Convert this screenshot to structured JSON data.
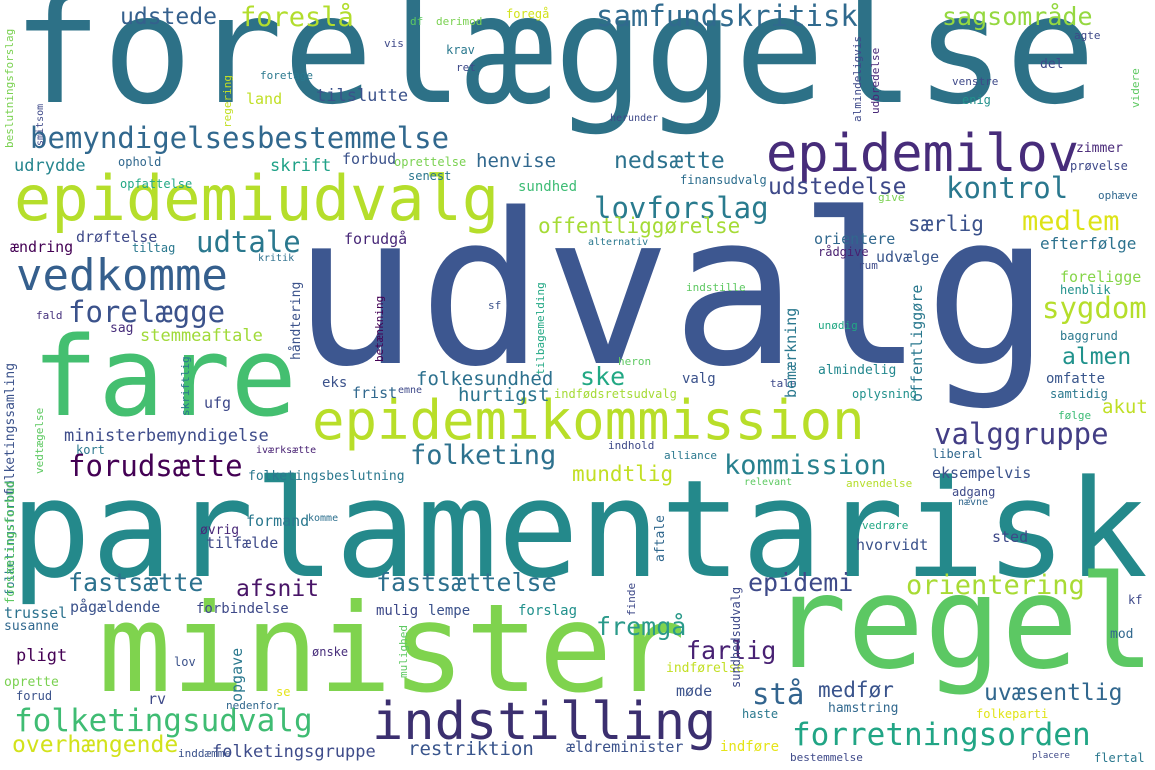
{
  "words": [
    {
      "text": "forelæggelse",
      "color": "#2d7187"
    },
    {
      "text": "udvalg",
      "color": "#3d5790"
    },
    {
      "text": "parlamentarisk",
      "color": "#24898b"
    },
    {
      "text": "minister",
      "color": "#7fd34e"
    },
    {
      "text": "regel",
      "color": "#5cc863"
    },
    {
      "text": "fare",
      "color": "#44bf70"
    },
    {
      "text": "epidemiudvalg",
      "color": "#b5de2b"
    },
    {
      "text": "epidemikommission",
      "color": "#b8de29"
    },
    {
      "text": "vedkomme",
      "color": "#355f8d"
    },
    {
      "text": "epidemilov",
      "color": "#472c7a"
    },
    {
      "text": "bemyndigelsesbestemmelse",
      "color": "#31688e"
    },
    {
      "text": "indstilling",
      "color": "#3b2f6f"
    },
    {
      "text": "folketingsudvalg",
      "color": "#3fbc73"
    },
    {
      "text": "forretningsorden",
      "color": "#21a585"
    },
    {
      "text": "samfundskritisk",
      "color": "#306a8e"
    },
    {
      "text": "kontrol",
      "color": "#2a788e"
    },
    {
      "text": "lovforslag",
      "color": "#297b8e"
    },
    {
      "text": "forelægge",
      "color": "#3b528b"
    },
    {
      "text": "udtale",
      "color": "#2a788e"
    },
    {
      "text": "valggruppe",
      "color": "#433e85"
    },
    {
      "text": "folketing",
      "color": "#2d718e"
    },
    {
      "text": "kommission",
      "color": "#27808e"
    },
    {
      "text": "forudsætte",
      "color": "#440154"
    },
    {
      "text": "sygdom",
      "color": "#b5de2b"
    },
    {
      "text": "medlem",
      "color": "#dde318"
    },
    {
      "text": "fastsætte",
      "color": "#2c728e"
    },
    {
      "text": "fastsættelse",
      "color": "#2d708e"
    },
    {
      "text": "fremgå",
      "color": "#2a9a8a"
    },
    {
      "text": "orientering",
      "color": "#a8db34"
    },
    {
      "text": "epidemi",
      "color": "#3e4a89"
    },
    {
      "text": "stå",
      "color": "#32648e"
    },
    {
      "text": "foreslå",
      "color": "#b2dd2d"
    },
    {
      "text": "udstede",
      "color": "#35608d"
    },
    {
      "text": "sagsområde",
      "color": "#95d840"
    },
    {
      "text": "nedsætte",
      "color": "#2c728e"
    },
    {
      "text": "udstedelse",
      "color": "#3e4989"
    },
    {
      "text": "offentliggørelse",
      "color": "#a5db36"
    },
    {
      "text": "særlig",
      "color": "#3b528b"
    },
    {
      "text": "farlig",
      "color": "#482173"
    },
    {
      "text": "afsnit",
      "color": "#481467"
    },
    {
      "text": "ske",
      "color": "#22a884"
    },
    {
      "text": "almen",
      "color": "#20928c"
    },
    {
      "text": "akut",
      "color": "#c0df25"
    },
    {
      "text": "ministerbemyndigelse",
      "color": "#3e4c8a"
    },
    {
      "text": "folkesundhed",
      "color": "#2d718e"
    },
    {
      "text": "hurtigst",
      "color": "#2b748e"
    },
    {
      "text": "mundtlig",
      "color": "#c2df23"
    },
    {
      "text": "uvæsentlig",
      "color": "#31678e"
    },
    {
      "text": "medfør",
      "color": "#3a548c"
    },
    {
      "text": "restriktion",
      "color": "#39558c"
    },
    {
      "text": "overhængende",
      "color": "#d2e21b"
    },
    {
      "text": "folketingsgruppe",
      "color": "#3e4c8a"
    },
    {
      "text": "stemmeaftale",
      "color": "#a0da39"
    },
    {
      "text": "henvise",
      "color": "#31688e"
    },
    {
      "text": "udrydde",
      "color": "#25858e"
    },
    {
      "text": "skrift",
      "color": "#1fa187"
    },
    {
      "text": "forbud",
      "color": "#3b528b"
    },
    {
      "text": "land",
      "color": "#c0df25"
    },
    {
      "text": "tilslutte",
      "color": "#3b528b"
    },
    {
      "text": "opfattelse",
      "color": "#22a884"
    },
    {
      "text": "ophold",
      "color": "#31688e"
    },
    {
      "text": "oprettelse",
      "color": "#7ad151"
    },
    {
      "text": "senest",
      "color": "#2a768e"
    },
    {
      "text": "sundhed",
      "color": "#3dbc74"
    },
    {
      "text": "finansudvalg",
      "color": "#2e6e8e"
    },
    {
      "text": "give",
      "color": "#7ad151"
    },
    {
      "text": "ophæve",
      "color": "#31688e"
    },
    {
      "text": "ændring",
      "color": "#440154"
    },
    {
      "text": "drøftelse",
      "color": "#3e4989"
    },
    {
      "text": "tiltag",
      "color": "#2a788e"
    },
    {
      "text": "forudgå",
      "color": "#482878"
    },
    {
      "text": "orientere",
      "color": "#31688e"
    },
    {
      "text": "rådgive",
      "color": "#481f70"
    },
    {
      "text": "rum",
      "color": "#3e4a89"
    },
    {
      "text": "udvælge",
      "color": "#39568c"
    },
    {
      "text": "efterfølge",
      "color": "#2c728e"
    },
    {
      "text": "foreligge",
      "color": "#86d549"
    },
    {
      "text": "henblik",
      "color": "#21918c"
    },
    {
      "text": "baggrund",
      "color": "#2a788e"
    },
    {
      "text": "kritik",
      "color": "#2d708e"
    },
    {
      "text": "alternativ",
      "color": "#2a788e"
    },
    {
      "text": "indstille",
      "color": "#5ec962"
    },
    {
      "text": "sag",
      "color": "#472d7b"
    },
    {
      "text": "fald",
      "color": "#46327e"
    },
    {
      "text": "betænkning",
      "color": "#440154"
    },
    {
      "text": "tilbagemelding",
      "color": "#22a884"
    },
    {
      "text": "sf",
      "color": "#3b528b"
    },
    {
      "text": "unødig",
      "color": "#22a884"
    },
    {
      "text": "heron",
      "color": "#5ec962"
    },
    {
      "text": "valg",
      "color": "#3b528b"
    },
    {
      "text": "tale",
      "color": "#3e4989"
    },
    {
      "text": "almindelig",
      "color": "#23888e"
    },
    {
      "text": "omfatte",
      "color": "#39568c"
    },
    {
      "text": "samtidig",
      "color": "#2a788e"
    },
    {
      "text": "eks",
      "color": "#3b528b"
    },
    {
      "text": "frist",
      "color": "#31688e"
    },
    {
      "text": "emne",
      "color": "#3e4989"
    },
    {
      "text": "indfødsretsudvalg",
      "color": "#a5db36"
    },
    {
      "text": "oplysning",
      "color": "#21918c"
    },
    {
      "text": "følge",
      "color": "#3bbb75"
    },
    {
      "text": "ufg",
      "color": "#3e4989"
    },
    {
      "text": "iværksætte",
      "color": "#482173"
    },
    {
      "text": "indhold",
      "color": "#3e4989"
    },
    {
      "text": "alliance",
      "color": "#2a788e"
    },
    {
      "text": "liberal",
      "color": "#31688e"
    },
    {
      "text": "kort",
      "color": "#2a788e"
    },
    {
      "text": "folketingsbeslutning",
      "color": "#2a788e"
    },
    {
      "text": "relevant",
      "color": "#5ec962"
    },
    {
      "text": "anvendelse",
      "color": "#b5de2b"
    },
    {
      "text": "eksempelvis",
      "color": "#3b528b"
    },
    {
      "text": "adgang",
      "color": "#3e4a89"
    },
    {
      "text": "nævne",
      "color": "#31688e"
    },
    {
      "text": "formand",
      "color": "#2a788e"
    },
    {
      "text": "komme",
      "color": "#2d708e"
    },
    {
      "text": "øvrig",
      "color": "#482878"
    },
    {
      "text": "aftale",
      "color": "#31688e"
    },
    {
      "text": "tilfælde",
      "color": "#3e4a89"
    },
    {
      "text": "hvorvidt",
      "color": "#3b528b"
    },
    {
      "text": "sted",
      "color": "#3e4989"
    },
    {
      "text": "vedrøre",
      "color": "#22a884"
    },
    {
      "text": "zimmer",
      "color": "#482878"
    },
    {
      "text": "prøvelse",
      "color": "#3e4989"
    },
    {
      "text": "trussel",
      "color": "#2c728e"
    },
    {
      "text": "pågældende",
      "color": "#3b528b"
    },
    {
      "text": "forbindelse",
      "color": "#3e4989"
    },
    {
      "text": "susanne",
      "color": "#31688e"
    },
    {
      "text": "mulig",
      "color": "#3e4989"
    },
    {
      "text": "lempe",
      "color": "#3b528b"
    },
    {
      "text": "forslag",
      "color": "#21918c"
    },
    {
      "text": "pligt",
      "color": "#440154"
    },
    {
      "text": "opgave",
      "color": "#2a788e"
    },
    {
      "text": "ønske",
      "color": "#472d7b"
    },
    {
      "text": "mod",
      "color": "#31688e"
    },
    {
      "text": "kf",
      "color": "#3e4989"
    },
    {
      "text": "indførelse",
      "color": "#c2df23"
    },
    {
      "text": "møde",
      "color": "#3b528b"
    },
    {
      "text": "oprette",
      "color": "#7ad151"
    },
    {
      "text": "forud",
      "color": "#3b528b"
    },
    {
      "text": "lov",
      "color": "#3b528b"
    },
    {
      "text": "nedenfor",
      "color": "#31688e"
    },
    {
      "text": "haste",
      "color": "#2a788e"
    },
    {
      "text": "hamstring",
      "color": "#31688e"
    },
    {
      "text": "folkeparti",
      "color": "#e1e418"
    },
    {
      "text": "inddæmme",
      "color": "#3b528b"
    },
    {
      "text": "ældreminister",
      "color": "#3b528b"
    },
    {
      "text": "indføre",
      "color": "#e5e419"
    },
    {
      "text": "bestemmelse",
      "color": "#3e4989"
    },
    {
      "text": "flertal",
      "color": "#2a788e"
    },
    {
      "text": "rv",
      "color": "#3e4989"
    },
    {
      "text": "se",
      "color": "#e5e419"
    },
    {
      "text": "vis",
      "color": "#3e4989"
    },
    {
      "text": "df",
      "color": "#5ec962"
    },
    {
      "text": "derimod",
      "color": "#7ad151"
    },
    {
      "text": "foregå",
      "color": "#d2e21b"
    },
    {
      "text": "krav",
      "color": "#2a788e"
    },
    {
      "text": "ret",
      "color": "#3e4989"
    },
    {
      "text": "foretage",
      "color": "#2a788e"
    },
    {
      "text": "regering",
      "color": "#c2df23"
    },
    {
      "text": "herunder",
      "color": "#3e4989"
    },
    {
      "text": "del",
      "color": "#3e4989"
    },
    {
      "text": "enig",
      "color": "#21918c"
    },
    {
      "text": "venstre",
      "color": "#3e4989"
    },
    {
      "text": "agte",
      "color": "#3e4989"
    },
    {
      "text": "videre",
      "color": "#5ec962"
    },
    {
      "text": "smitsom",
      "color": "#3e4989"
    },
    {
      "text": "beslutningsforslag",
      "color": "#7ad151"
    },
    {
      "text": "folketingssamling",
      "color": "#3b528b"
    },
    {
      "text": "folketingsforbud",
      "color": "#2a788e"
    },
    {
      "text": "vedtægelse",
      "color": "#5ec962"
    },
    {
      "text": "forsamlingsforbud",
      "color": "#5ec962"
    },
    {
      "text": "håndtering",
      "color": "#3b528b"
    },
    {
      "text": "offentliggøre",
      "color": "#2a788e"
    },
    {
      "text": "bemærkning",
      "color": "#2a788e"
    },
    {
      "text": "almindeligvis",
      "color": "#3e4989"
    },
    {
      "text": "udbredelse",
      "color": "#482878"
    },
    {
      "text": "mulighed",
      "color": "#5ec962"
    },
    {
      "text": "sundhedsudvalg",
      "color": "#3e4989"
    },
    {
      "text": "finde",
      "color": "#3e4989"
    },
    {
      "text": "skriftlig",
      "color": "#2a788e"
    },
    {
      "text": "placere",
      "color": "#3e4989"
    }
  ]
}
